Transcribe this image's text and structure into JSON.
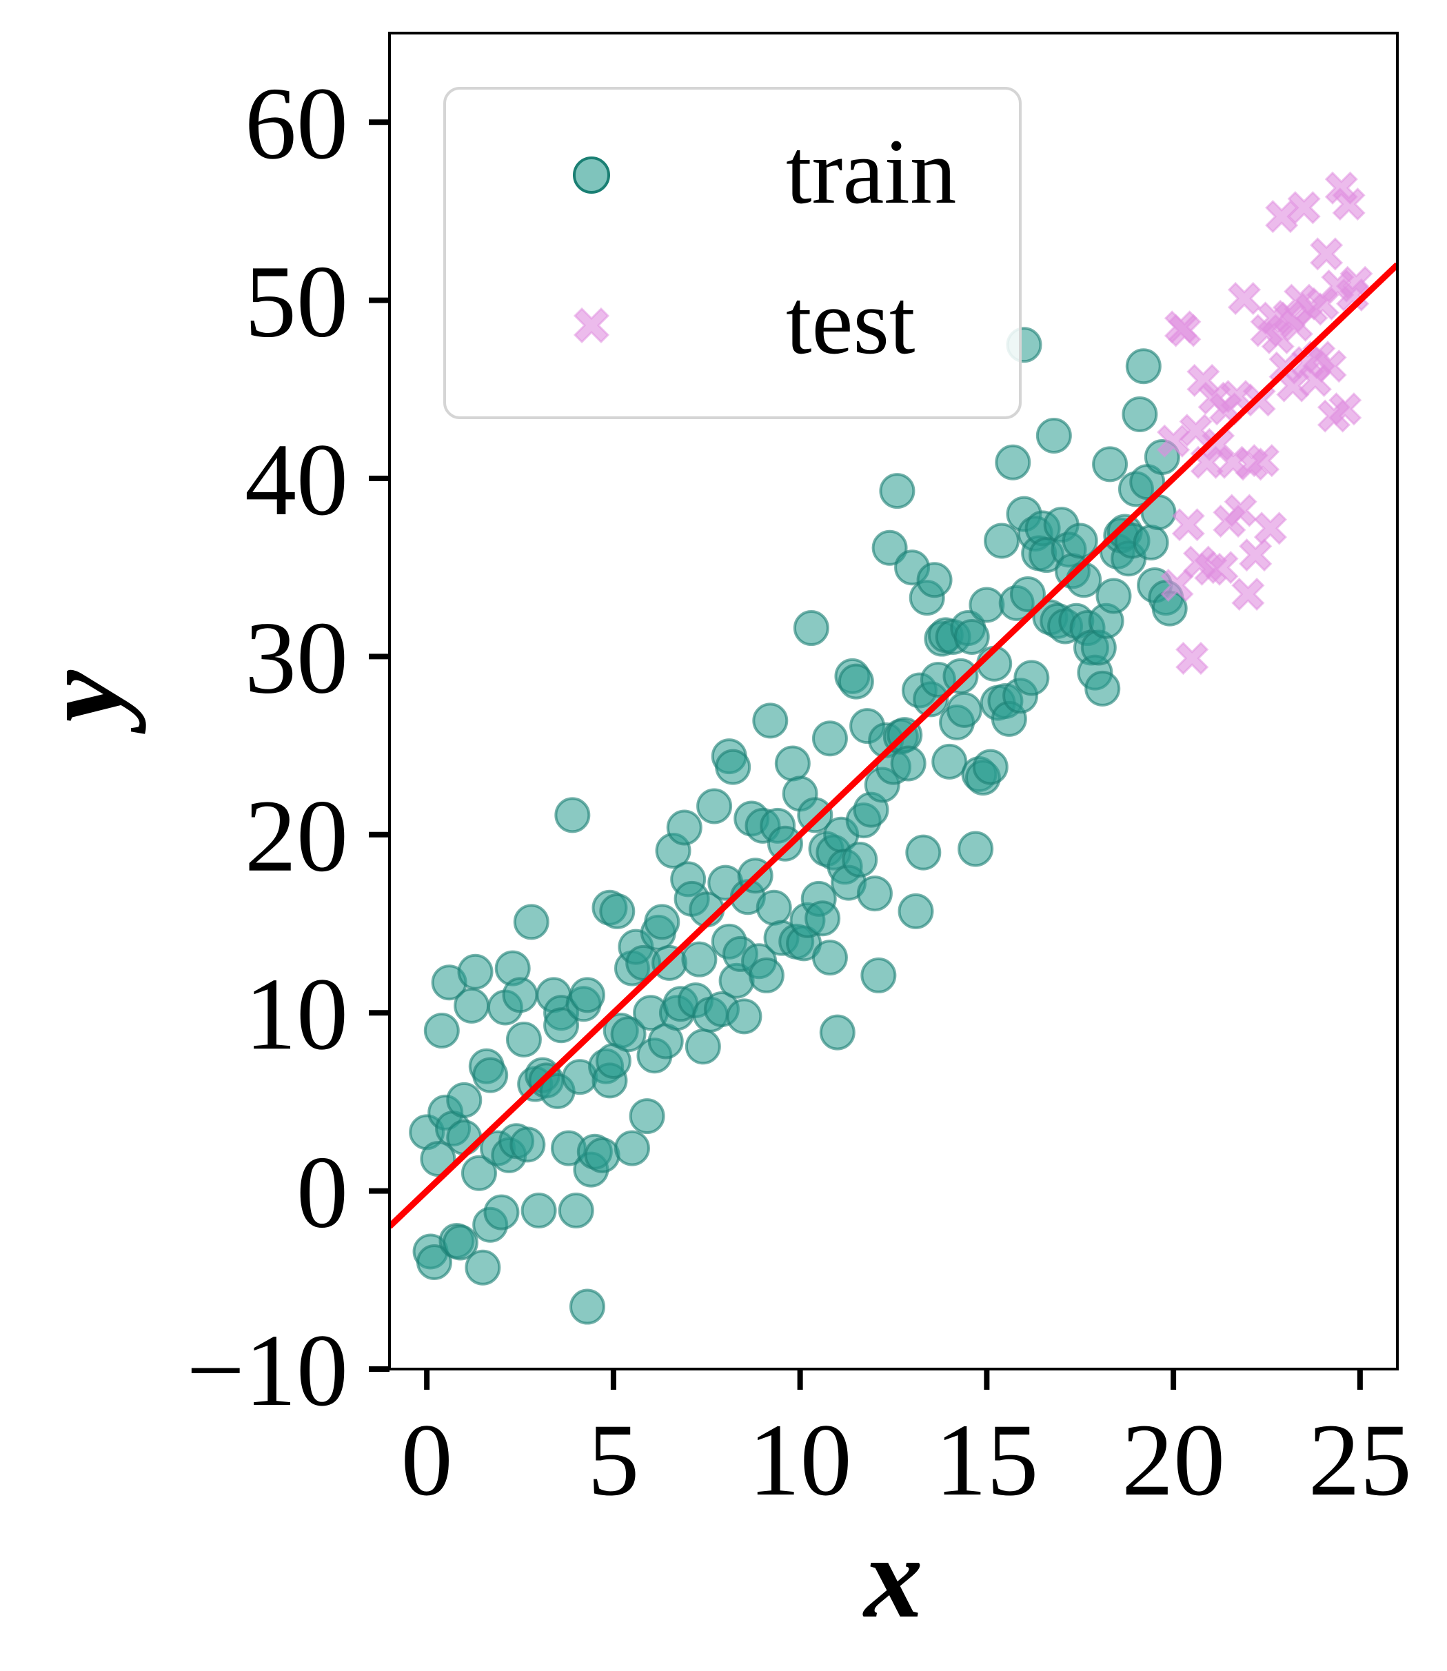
{
  "chart_data": {
    "type": "scatter",
    "xlabel": "x",
    "ylabel": "y",
    "xlim": [
      -1,
      26
    ],
    "ylim": [
      -10,
      65
    ],
    "xticks": [
      "0",
      "5",
      "10",
      "15",
      "20",
      "25"
    ],
    "yticks": [
      "−10",
      "0",
      "10",
      "20",
      "30",
      "40",
      "50",
      "60"
    ],
    "legend_position": "top-left",
    "grid": false,
    "colors": {
      "train": "#2a9d8f",
      "train_edge": "#1a7f73",
      "test": "#e08ee0",
      "fit": "#ff0000"
    },
    "series": [
      {
        "name": "train",
        "marker": "circle",
        "points": [
          [
            0.0,
            3.3
          ],
          [
            0.1,
            -3.4
          ],
          [
            0.2,
            -4.0
          ],
          [
            0.3,
            1.8
          ],
          [
            0.4,
            9.0
          ],
          [
            0.5,
            4.4
          ],
          [
            0.6,
            11.7
          ],
          [
            0.7,
            3.5
          ],
          [
            0.8,
            -2.8
          ],
          [
            0.9,
            -2.9
          ],
          [
            1.0,
            5.1
          ],
          [
            1.0,
            3.0
          ],
          [
            1.2,
            10.4
          ],
          [
            1.3,
            12.3
          ],
          [
            1.4,
            1.0
          ],
          [
            1.5,
            -4.3
          ],
          [
            1.6,
            7.0
          ],
          [
            1.7,
            -1.9
          ],
          [
            1.7,
            6.5
          ],
          [
            1.9,
            2.4
          ],
          [
            2.0,
            -1.2
          ],
          [
            2.1,
            10.3
          ],
          [
            2.2,
            2.0
          ],
          [
            2.3,
            12.5
          ],
          [
            2.4,
            2.8
          ],
          [
            2.5,
            11.0
          ],
          [
            2.6,
            8.5
          ],
          [
            2.7,
            2.6
          ],
          [
            2.8,
            15.1
          ],
          [
            2.9,
            6.0
          ],
          [
            3.0,
            -1.1
          ],
          [
            3.1,
            6.5
          ],
          [
            3.2,
            6.2
          ],
          [
            3.4,
            11.0
          ],
          [
            3.5,
            5.6
          ],
          [
            3.6,
            10.0
          ],
          [
            3.6,
            9.3
          ],
          [
            3.8,
            2.4
          ],
          [
            3.9,
            21.1
          ],
          [
            4.0,
            -1.1
          ],
          [
            4.1,
            6.4
          ],
          [
            4.2,
            10.5
          ],
          [
            4.3,
            -6.5
          ],
          [
            4.3,
            11.0
          ],
          [
            4.4,
            1.2
          ],
          [
            4.5,
            2.2
          ],
          [
            4.7,
            2.0
          ],
          [
            4.8,
            7.0
          ],
          [
            4.9,
            6.2
          ],
          [
            4.9,
            15.9
          ],
          [
            5.0,
            7.3
          ],
          [
            5.1,
            15.7
          ],
          [
            5.2,
            9.0
          ],
          [
            5.4,
            8.8
          ],
          [
            5.5,
            2.4
          ],
          [
            5.5,
            12.5
          ],
          [
            5.6,
            13.7
          ],
          [
            5.8,
            12.8
          ],
          [
            5.9,
            4.2
          ],
          [
            6.0,
            10.0
          ],
          [
            6.1,
            7.6
          ],
          [
            6.2,
            14.5
          ],
          [
            6.3,
            15.1
          ],
          [
            6.4,
            8.4
          ],
          [
            6.5,
            12.8
          ],
          [
            6.6,
            19.1
          ],
          [
            6.7,
            10.0
          ],
          [
            6.8,
            10.5
          ],
          [
            6.9,
            20.4
          ],
          [
            7.0,
            17.5
          ],
          [
            7.1,
            16.4
          ],
          [
            7.2,
            10.7
          ],
          [
            7.3,
            13.0
          ],
          [
            7.4,
            8.1
          ],
          [
            7.5,
            15.8
          ],
          [
            7.6,
            9.9
          ],
          [
            7.7,
            21.6
          ],
          [
            7.9,
            10.2
          ],
          [
            8.0,
            17.3
          ],
          [
            8.1,
            14.0
          ],
          [
            8.1,
            24.4
          ],
          [
            8.2,
            23.8
          ],
          [
            8.3,
            11.8
          ],
          [
            8.4,
            13.3
          ],
          [
            8.5,
            9.8
          ],
          [
            8.6,
            16.5
          ],
          [
            8.7,
            20.9
          ],
          [
            8.8,
            17.7
          ],
          [
            8.9,
            12.9
          ],
          [
            9.0,
            20.5
          ],
          [
            9.1,
            12.1
          ],
          [
            9.2,
            26.4
          ],
          [
            9.3,
            15.9
          ],
          [
            9.4,
            20.5
          ],
          [
            9.5,
            14.2
          ],
          [
            9.6,
            19.5
          ],
          [
            9.8,
            24.0
          ],
          [
            9.9,
            14.0
          ],
          [
            10.0,
            22.3
          ],
          [
            10.1,
            13.9
          ],
          [
            10.2,
            15.2
          ],
          [
            10.3,
            31.6
          ],
          [
            10.4,
            21.1
          ],
          [
            10.5,
            16.4
          ],
          [
            10.6,
            15.3
          ],
          [
            10.7,
            19.2
          ],
          [
            10.8,
            25.4
          ],
          [
            10.8,
            13.1
          ],
          [
            10.9,
            19.0
          ],
          [
            11.0,
            8.9
          ],
          [
            11.1,
            20.0
          ],
          [
            11.2,
            18.2
          ],
          [
            11.3,
            17.3
          ],
          [
            11.4,
            28.9
          ],
          [
            11.5,
            28.6
          ],
          [
            11.6,
            18.6
          ],
          [
            11.7,
            20.8
          ],
          [
            11.8,
            26.1
          ],
          [
            11.9,
            21.4
          ],
          [
            12.0,
            16.7
          ],
          [
            12.1,
            12.1
          ],
          [
            12.2,
            22.8
          ],
          [
            12.3,
            25.3
          ],
          [
            12.4,
            36.1
          ],
          [
            12.5,
            23.8
          ],
          [
            12.6,
            39.3
          ],
          [
            12.7,
            25.5
          ],
          [
            12.8,
            25.6
          ],
          [
            12.9,
            24.0
          ],
          [
            13.0,
            35.0
          ],
          [
            13.1,
            15.7
          ],
          [
            13.2,
            28.1
          ],
          [
            13.3,
            19.0
          ],
          [
            13.4,
            33.3
          ],
          [
            13.5,
            27.6
          ],
          [
            13.6,
            34.3
          ],
          [
            13.7,
            28.7
          ],
          [
            13.8,
            31.0
          ],
          [
            13.9,
            31.2
          ],
          [
            14.0,
            24.1
          ],
          [
            14.1,
            31.1
          ],
          [
            14.2,
            26.3
          ],
          [
            14.3,
            28.9
          ],
          [
            14.4,
            27.0
          ],
          [
            14.5,
            31.6
          ],
          [
            14.6,
            31.1
          ],
          [
            14.7,
            19.2
          ],
          [
            14.8,
            23.4
          ],
          [
            14.9,
            23.2
          ],
          [
            15.0,
            32.9
          ],
          [
            15.1,
            23.8
          ],
          [
            15.2,
            29.6
          ],
          [
            15.3,
            27.4
          ],
          [
            15.4,
            36.5
          ],
          [
            15.5,
            27.5
          ],
          [
            15.6,
            26.5
          ],
          [
            15.7,
            40.9
          ],
          [
            15.8,
            33.0
          ],
          [
            15.9,
            27.8
          ],
          [
            16.0,
            38.0
          ],
          [
            16.0,
            47.5
          ],
          [
            16.1,
            33.5
          ],
          [
            16.2,
            28.8
          ],
          [
            16.3,
            36.9
          ],
          [
            16.4,
            35.8
          ],
          [
            16.5,
            37.2
          ],
          [
            16.6,
            35.7
          ],
          [
            16.7,
            32.2
          ],
          [
            16.8,
            42.4
          ],
          [
            16.9,
            32.0
          ],
          [
            17.0,
            37.4
          ],
          [
            17.1,
            31.7
          ],
          [
            17.2,
            36.0
          ],
          [
            17.3,
            34.8
          ],
          [
            17.4,
            32.0
          ],
          [
            17.5,
            36.5
          ],
          [
            17.6,
            34.3
          ],
          [
            17.7,
            31.6
          ],
          [
            17.8,
            30.5
          ],
          [
            17.9,
            29.1
          ],
          [
            18.0,
            30.5
          ],
          [
            18.1,
            28.2
          ],
          [
            18.2,
            32.0
          ],
          [
            18.3,
            40.8
          ],
          [
            18.4,
            33.4
          ],
          [
            18.5,
            35.9
          ],
          [
            18.6,
            36.8
          ],
          [
            18.7,
            37.0
          ],
          [
            18.8,
            35.5
          ],
          [
            18.9,
            36.5
          ],
          [
            19.0,
            39.4
          ],
          [
            19.1,
            43.6
          ],
          [
            19.2,
            46.3
          ],
          [
            19.3,
            39.8
          ],
          [
            19.4,
            36.4
          ],
          [
            19.5,
            34.0
          ],
          [
            19.6,
            38.1
          ],
          [
            19.7,
            41.2
          ],
          [
            19.8,
            33.3
          ],
          [
            19.9,
            32.7
          ]
        ]
      },
      {
        "name": "test",
        "marker": "x",
        "points": [
          [
            20.0,
            42.1
          ],
          [
            20.1,
            34.0
          ],
          [
            20.2,
            48.5
          ],
          [
            20.3,
            48.3
          ],
          [
            20.4,
            37.4
          ],
          [
            20.5,
            29.9
          ],
          [
            20.6,
            42.7
          ],
          [
            20.7,
            35.3
          ],
          [
            20.8,
            45.5
          ],
          [
            20.9,
            40.9
          ],
          [
            21.0,
            34.9
          ],
          [
            21.1,
            44.5
          ],
          [
            21.2,
            41.9
          ],
          [
            21.3,
            35.0
          ],
          [
            21.4,
            43.9
          ],
          [
            21.5,
            37.6
          ],
          [
            21.6,
            40.9
          ],
          [
            21.7,
            44.6
          ],
          [
            21.8,
            38.2
          ],
          [
            21.9,
            50.1
          ],
          [
            22.0,
            33.5
          ],
          [
            22.1,
            40.8
          ],
          [
            22.2,
            35.7
          ],
          [
            22.3,
            44.4
          ],
          [
            22.4,
            41.0
          ],
          [
            22.5,
            48.3
          ],
          [
            22.6,
            37.2
          ],
          [
            22.7,
            49.0
          ],
          [
            22.8,
            47.9
          ],
          [
            22.9,
            54.7
          ],
          [
            23.0,
            46.2
          ],
          [
            23.1,
            49.1
          ],
          [
            23.2,
            45.2
          ],
          [
            23.3,
            48.6
          ],
          [
            23.4,
            50.0
          ],
          [
            23.5,
            55.2
          ],
          [
            23.6,
            46.5
          ],
          [
            23.7,
            49.5
          ],
          [
            23.8,
            45.5
          ],
          [
            23.9,
            46.8
          ],
          [
            24.0,
            49.8
          ],
          [
            24.1,
            52.6
          ],
          [
            24.2,
            46.3
          ],
          [
            24.3,
            43.5
          ],
          [
            24.4,
            50.8
          ],
          [
            24.5,
            56.3
          ],
          [
            24.6,
            43.9
          ],
          [
            24.7,
            55.4
          ],
          [
            24.8,
            50.3
          ],
          [
            24.9,
            51.0
          ]
        ]
      }
    ],
    "fit_line": {
      "slope": 2.0,
      "intercept": 0.0
    }
  }
}
